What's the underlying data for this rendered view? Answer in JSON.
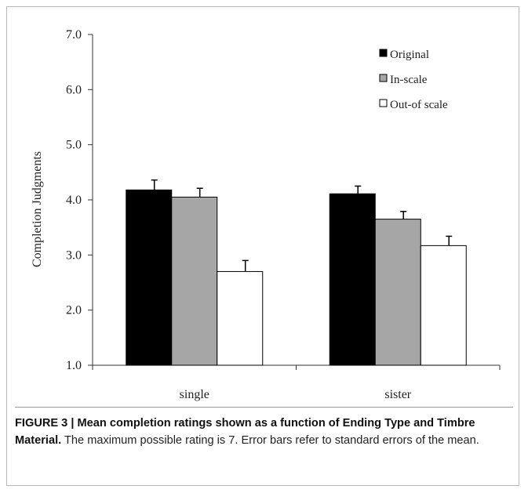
{
  "chart_data": {
    "type": "bar",
    "title": "",
    "xlabel": "",
    "ylabel": "Completion Judgments",
    "ylim": [
      1.0,
      7.0
    ],
    "yticks": [
      "1.0",
      "2.0",
      "3.0",
      "4.0",
      "5.0",
      "6.0",
      "7.0"
    ],
    "categories": [
      "single",
      "sister"
    ],
    "series": [
      {
        "name": "Original",
        "values": [
          4.18,
          4.11
        ],
        "errors": [
          0.18,
          0.14
        ],
        "color": "#000000"
      },
      {
        "name": "In-scale",
        "values": [
          4.05,
          3.65
        ],
        "errors": [
          0.16,
          0.14
        ],
        "color": "#a6a6a6"
      },
      {
        "name": "Out-of scale",
        "values": [
          2.7,
          3.17
        ],
        "errors": [
          0.2,
          0.17
        ],
        "color": "#ffffff"
      }
    ],
    "legend": "top-right",
    "grid": false
  },
  "caption": {
    "label": "FIGURE 3 | Mean completion ratings shown as a function of Ending Type and Timbre Material.",
    "text": " The maximum possible rating is 7. Error bars refer to standard errors of the mean."
  }
}
